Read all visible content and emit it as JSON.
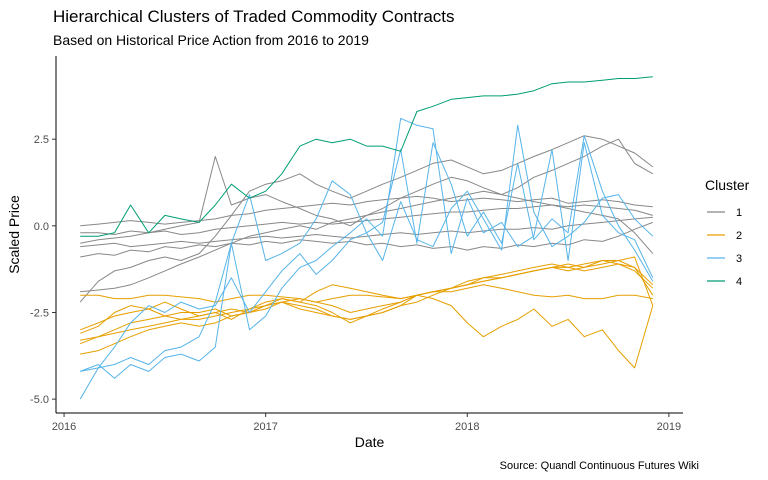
{
  "chart_data": {
    "type": "line",
    "title": "Hierarchical Clusters of Traded Commodity Contracts",
    "subtitle": "Based on Historical Price Action from 2016 to 2019",
    "caption": "Source: Quandl Continuous Futures Wiki",
    "xlabel": "Date",
    "ylabel": "Scaled Price",
    "xlim": [
      2015.96,
      2019.07
    ],
    "ylim": [
      -5.4,
      4.9
    ],
    "x_ticks": [
      2016,
      2017,
      2018,
      2019
    ],
    "x_tick_labels": [
      "2016",
      "2017",
      "2018",
      "2019"
    ],
    "y_ticks": [
      -5.0,
      -2.5,
      0.0,
      2.5
    ],
    "y_tick_labels": [
      "-5.0",
      "-2.5",
      "0.0",
      "2.5"
    ],
    "grid": false,
    "legend": {
      "title": "Cluster",
      "position": "right"
    },
    "x": [
      2016.08,
      2016.17,
      2016.25,
      2016.33,
      2016.42,
      2016.5,
      2016.58,
      2016.67,
      2016.75,
      2016.83,
      2016.92,
      2017.0,
      2017.08,
      2017.17,
      2017.25,
      2017.33,
      2017.42,
      2017.5,
      2017.58,
      2017.67,
      2017.75,
      2017.83,
      2017.92,
      2018.0,
      2018.08,
      2018.17,
      2018.25,
      2018.33,
      2018.42,
      2018.5,
      2018.58,
      2018.67,
      2018.75,
      2018.83,
      2018.92
    ],
    "series": [
      {
        "cluster": "1",
        "color": "#888888",
        "values": [
          0.0,
          0.05,
          0.1,
          0.15,
          0.1,
          0.05,
          0.1,
          0.15,
          0.2,
          0.3,
          0.35,
          0.45,
          0.5,
          0.55,
          0.6,
          0.65,
          0.6,
          0.7,
          0.75,
          0.8,
          0.85,
          0.8,
          0.7,
          0.75,
          0.8,
          0.75,
          0.7,
          0.75,
          0.8,
          0.65,
          0.7,
          0.75,
          0.7,
          0.6,
          0.55
        ]
      },
      {
        "cluster": "1",
        "color": "#888888",
        "values": [
          -0.2,
          -0.2,
          -0.25,
          -0.15,
          -0.2,
          -0.15,
          -0.25,
          -0.2,
          -0.1,
          -0.05,
          0.0,
          0.05,
          0.1,
          0.05,
          0.1,
          0.05,
          0.1,
          0.15,
          0.2,
          0.25,
          0.3,
          0.35,
          0.4,
          0.4,
          0.45,
          0.5,
          0.5,
          0.55,
          0.6,
          0.55,
          0.6,
          0.55,
          0.5,
          0.45,
          0.3
        ]
      },
      {
        "cluster": "1",
        "color": "#888888",
        "values": [
          -0.6,
          -0.55,
          -0.5,
          -0.6,
          -0.55,
          -0.5,
          -0.45,
          -0.5,
          -0.45,
          -0.4,
          -0.35,
          -0.3,
          -0.35,
          -0.3,
          -0.25,
          -0.3,
          -0.35,
          -0.3,
          -0.25,
          -0.2,
          -0.25,
          -0.2,
          -0.15,
          -0.2,
          -0.15,
          -0.1,
          -0.1,
          -0.05,
          -0.1,
          0.0,
          0.05,
          0.1,
          0.15,
          0.2,
          0.25
        ]
      },
      {
        "cluster": "1",
        "color": "#888888",
        "values": [
          -1.9,
          -1.85,
          -1.8,
          -1.7,
          -1.5,
          -1.3,
          -1.1,
          -0.9,
          -0.7,
          -0.5,
          -0.3,
          -0.2,
          -0.1,
          0.0,
          -0.1,
          0.1,
          0.2,
          0.3,
          0.4,
          0.5,
          0.6,
          0.7,
          0.8,
          0.9,
          1.0,
          0.9,
          0.8,
          0.7,
          0.6,
          0.5,
          0.4,
          0.3,
          0.2,
          -0.2,
          -0.8
        ]
      },
      {
        "cluster": "1",
        "color": "#888888",
        "values": [
          -2.2,
          -1.6,
          -1.3,
          -1.2,
          -1.0,
          -0.9,
          -1.0,
          -0.8,
          -0.3,
          0.3,
          1.0,
          1.2,
          1.3,
          1.5,
          1.2,
          1.0,
          0.8,
          1.0,
          1.2,
          1.4,
          1.6,
          1.8,
          1.9,
          1.7,
          1.5,
          1.6,
          1.8,
          2.0,
          2.2,
          2.4,
          2.6,
          2.5,
          2.3,
          2.1,
          1.7
        ]
      },
      {
        "cluster": "1",
        "color": "#888888",
        "values": [
          -0.5,
          -0.4,
          -0.35,
          -0.3,
          -0.2,
          -0.1,
          0.0,
          0.1,
          2.0,
          0.6,
          0.8,
          0.9,
          0.7,
          0.5,
          0.3,
          0.2,
          0.0,
          0.3,
          0.5,
          0.8,
          1.0,
          1.2,
          1.4,
          1.3,
          1.1,
          0.9,
          1.1,
          1.4,
          1.6,
          1.8,
          2.0,
          2.3,
          2.5,
          1.8,
          1.5
        ]
      },
      {
        "cluster": "1",
        "color": "#888888",
        "values": [
          -0.9,
          -0.8,
          -0.85,
          -0.7,
          -0.75,
          -0.6,
          -0.65,
          -0.55,
          -0.6,
          -0.5,
          -0.55,
          -0.45,
          -0.5,
          -0.4,
          -0.45,
          -0.5,
          -0.45,
          -0.55,
          -0.5,
          -0.6,
          -0.55,
          -0.65,
          -0.6,
          -0.7,
          -0.6,
          -0.65,
          -0.55,
          -0.6,
          -0.5,
          -0.55,
          -0.4,
          -0.45,
          -0.3,
          -0.1,
          0.1
        ]
      },
      {
        "cluster": "2",
        "color": "#e69f00",
        "values": [
          -2.0,
          -2.0,
          -2.1,
          -2.1,
          -2.0,
          -2.0,
          -2.05,
          -2.1,
          -2.2,
          -2.1,
          -2.0,
          -2.0,
          -2.05,
          -2.1,
          -2.2,
          -2.1,
          -2.0,
          -2.0,
          -2.05,
          -2.1,
          -2.0,
          -1.9,
          -1.9,
          -1.8,
          -1.7,
          -1.8,
          -1.9,
          -2.0,
          -2.05,
          -2.0,
          -2.1,
          -2.1,
          -2.0,
          -2.0,
          -2.1
        ]
      },
      {
        "cluster": "2",
        "color": "#e69f00",
        "values": [
          -3.4,
          -3.2,
          -3.0,
          -2.8,
          -2.7,
          -2.6,
          -2.5,
          -2.5,
          -2.4,
          -2.6,
          -2.5,
          -2.3,
          -2.2,
          -2.4,
          -2.5,
          -2.6,
          -2.7,
          -2.6,
          -2.5,
          -2.3,
          -2.2,
          -2.0,
          -1.8,
          -1.7,
          -1.5,
          -1.4,
          -1.3,
          -1.2,
          -1.1,
          -1.2,
          -1.3,
          -1.2,
          -1.1,
          -1.3,
          -1.8
        ]
      },
      {
        "cluster": "2",
        "color": "#e69f00",
        "values": [
          -3.3,
          -3.2,
          -3.1,
          -3.0,
          -2.9,
          -2.8,
          -2.7,
          -2.7,
          -2.6,
          -2.5,
          -2.4,
          -2.3,
          -2.1,
          -2.2,
          -2.3,
          -2.5,
          -2.8,
          -2.6,
          -2.5,
          -2.3,
          -2.0,
          -1.9,
          -1.8,
          -1.7,
          -1.6,
          -1.5,
          -1.4,
          -1.3,
          -1.2,
          -1.1,
          -1.2,
          -1.0,
          -1.1,
          -1.2,
          -2.0
        ]
      },
      {
        "cluster": "2",
        "color": "#e69f00",
        "values": [
          -3.7,
          -3.6,
          -3.4,
          -3.2,
          -3.0,
          -2.9,
          -2.8,
          -2.9,
          -2.8,
          -2.6,
          -2.5,
          -2.4,
          -2.2,
          -2.3,
          -2.4,
          -2.6,
          -2.7,
          -2.6,
          -2.4,
          -2.2,
          -2.0,
          -1.9,
          -1.8,
          -1.6,
          -1.5,
          -1.5,
          -1.4,
          -1.3,
          -1.2,
          -1.2,
          -1.1,
          -1.0,
          -1.0,
          -1.2,
          -1.7
        ]
      },
      {
        "cluster": "2",
        "color": "#e69f00",
        "values": [
          -3.0,
          -2.8,
          -2.6,
          -2.5,
          -2.4,
          -2.6,
          -2.7,
          -2.6,
          -2.5,
          -2.4,
          -2.5,
          -2.3,
          -2.2,
          -2.1,
          -2.2,
          -2.3,
          -2.5,
          -2.4,
          -2.3,
          -2.2,
          -2.0,
          -1.9,
          -1.8,
          -1.7,
          -1.6,
          -1.5,
          -1.4,
          -1.3,
          -1.2,
          -1.3,
          -1.2,
          -1.1,
          -1.0,
          -0.9,
          -2.3
        ]
      },
      {
        "cluster": "2",
        "color": "#e69f00",
        "values": [
          -3.1,
          -2.9,
          -2.5,
          -2.3,
          -2.4,
          -2.2,
          -2.4,
          -2.6,
          -2.5,
          -2.7,
          -2.4,
          -2.2,
          -2.1,
          -2.2,
          -1.9,
          -1.7,
          -1.8,
          -1.9,
          -2.0,
          -2.1,
          -2.0,
          -2.1,
          -2.3,
          -2.8,
          -3.2,
          -2.9,
          -2.7,
          -2.4,
          -2.9,
          -2.7,
          -3.2,
          -3.0,
          -3.6,
          -4.1,
          -2.3
        ]
      },
      {
        "cluster": "3",
        "color": "#56b4e9",
        "values": [
          -4.2,
          -4.1,
          -4.0,
          -3.8,
          -4.0,
          -3.6,
          -3.5,
          -3.2,
          -2.2,
          -0.5,
          0.9,
          -1.0,
          -0.8,
          -0.5,
          0.2,
          1.3,
          0.9,
          -0.2,
          0.1,
          2.2,
          -0.5,
          2.4,
          1.2,
          -0.3,
          0.4,
          -0.5,
          1.8,
          -0.4,
          0.2,
          -0.2,
          2.6,
          1.0,
          0.0,
          -0.7,
          -1.6
        ]
      },
      {
        "cluster": "3",
        "color": "#56b4e9",
        "values": [
          -5.0,
          -4.1,
          -3.5,
          -2.8,
          -2.3,
          -2.5,
          -2.2,
          -2.4,
          -2.3,
          -1.5,
          -2.5,
          -1.9,
          -1.3,
          -0.8,
          -1.4,
          -1.0,
          -0.4,
          -0.2,
          -1.0,
          0.7,
          -0.4,
          -0.6,
          0.5,
          1.0,
          0.2,
          -0.7,
          2.9,
          0.4,
          -0.6,
          -0.3,
          0.1,
          0.8,
          0.9,
          0.2,
          -0.3
        ]
      },
      {
        "cluster": "3",
        "color": "#56b4e9",
        "values": [
          -4.2,
          -4.0,
          -4.4,
          -4.0,
          -4.2,
          -3.8,
          -3.7,
          -3.9,
          -3.5,
          -0.5,
          -3.0,
          -2.6,
          -1.8,
          -1.2,
          -1.0,
          -0.6,
          -0.2,
          0.2,
          -0.3,
          3.1,
          2.9,
          2.8,
          -0.8,
          0.8,
          -0.2,
          0.1,
          -0.6,
          -0.3,
          2.2,
          -1.0,
          2.4,
          0.3,
          -0.2,
          -0.4,
          -1.5
        ]
      },
      {
        "cluster": "4",
        "color": "#009e73",
        "values": [
          -0.3,
          -0.3,
          -0.2,
          0.6,
          -0.2,
          0.3,
          0.2,
          0.1,
          0.6,
          1.2,
          0.8,
          1.0,
          1.5,
          2.3,
          2.5,
          2.4,
          2.5,
          2.3,
          2.3,
          2.15,
          3.3,
          3.45,
          3.65,
          3.7,
          3.75,
          3.75,
          3.8,
          3.9,
          4.1,
          4.15,
          4.15,
          4.2,
          4.25,
          4.25,
          4.3
        ]
      }
    ],
    "legend_items": [
      {
        "label": "1",
        "color": "#888888"
      },
      {
        "label": "2",
        "color": "#e69f00"
      },
      {
        "label": "3",
        "color": "#56b4e9"
      },
      {
        "label": "4",
        "color": "#009e73"
      }
    ]
  }
}
